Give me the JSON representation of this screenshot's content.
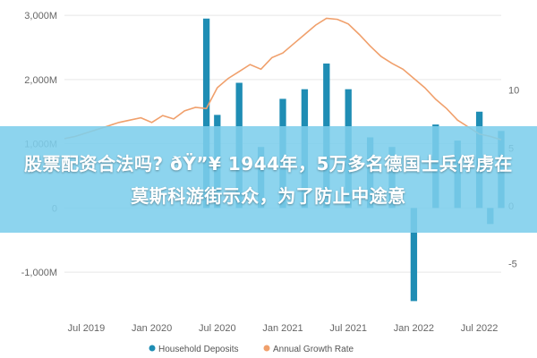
{
  "banner": {
    "headline": "股票配资合法吗? ðŸ”¥ 1944年，5万多名德国士兵俘虏在莫斯科游街示众，为了防止中途意"
  },
  "colors": {
    "bars": "#1f8db4",
    "line": "#f0a06c",
    "grid": "#e6e6e6",
    "banner": "#7dceec"
  },
  "chart_data": {
    "type": "bar+line",
    "y_left": {
      "ticks": [
        3000,
        2000,
        1000,
        0,
        -1000
      ],
      "labels": [
        "3,000M",
        "2,000M",
        "1,000M",
        "0",
        "-1,000M"
      ],
      "range": [
        -1500,
        3100
      ]
    },
    "y_right": {
      "ticks": [
        10,
        5,
        0,
        -5
      ],
      "labels": [
        "10",
        "5",
        "0",
        "-5"
      ],
      "range": [
        -8.5,
        17
      ]
    },
    "x_labels": [
      "Jul 2019",
      "Jan 2020",
      "Jul 2020",
      "Jan 2021",
      "Jul 2021",
      "Jan 2022",
      "Jul 2022"
    ],
    "x_label_index": [
      2,
      8,
      14,
      20,
      26,
      32,
      38
    ],
    "series": [
      {
        "name": "Household Deposits",
        "kind": "bar",
        "values": [
          null,
          null,
          null,
          null,
          null,
          null,
          null,
          null,
          null,
          null,
          null,
          null,
          null,
          2950,
          1450,
          null,
          1950,
          null,
          950,
          null,
          1700,
          null,
          1850,
          null,
          2250,
          null,
          1850,
          null,
          1100,
          null,
          950,
          null,
          -1450,
          null,
          1300,
          null,
          1050,
          null,
          1500,
          -250,
          1200
        ]
      },
      {
        "name": "Annual Growth Rate",
        "kind": "line",
        "values": [
          5.8,
          6.0,
          6.3,
          6.6,
          6.9,
          7.2,
          7.4,
          7.6,
          7.2,
          7.8,
          7.5,
          8.2,
          8.5,
          8.4,
          10.2,
          11.0,
          11.6,
          12.2,
          11.8,
          12.8,
          13.2,
          14.0,
          14.8,
          15.6,
          16.2,
          16.1,
          15.7,
          14.8,
          13.8,
          12.9,
          12.3,
          11.8,
          11.0,
          10.2,
          9.2,
          8.4,
          7.4,
          6.8,
          6.2,
          6.0,
          5.7
        ]
      }
    ],
    "legend_position": "bottom",
    "grid": true
  }
}
